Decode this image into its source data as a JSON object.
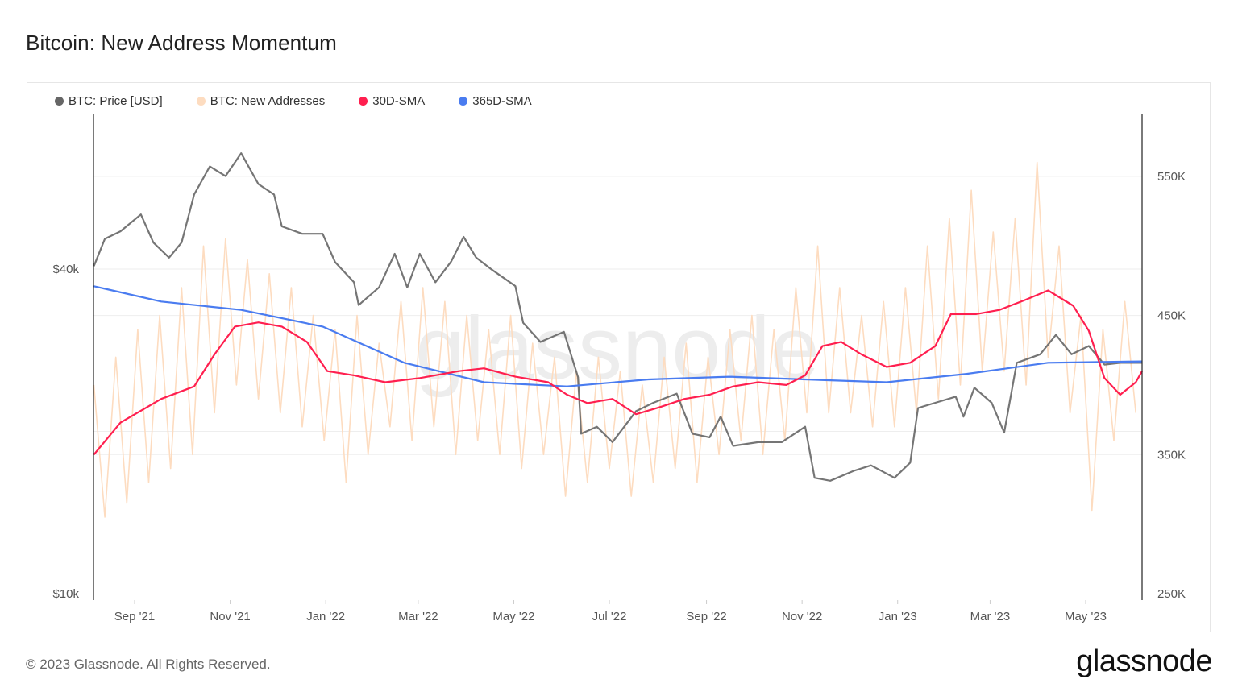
{
  "title": "Bitcoin: New Address Momentum",
  "footer": "© 2023 Glassnode. All Rights Reserved.",
  "logo": "glassnode",
  "watermark": "glassnode",
  "legend": [
    {
      "label": "BTC: Price [USD]",
      "color": "#666666"
    },
    {
      "label": "BTC: New Addresses",
      "color": "#fddcc0"
    },
    {
      "label": "30D-SMA",
      "color": "#ff1f4f"
    },
    {
      "label": "365D-SMA",
      "color": "#4a7cf0"
    }
  ],
  "chart_data": {
    "type": "line",
    "title": "Bitcoin: New Address Momentum",
    "x_range": [
      "2021-08-06",
      "2023-06-06"
    ],
    "grid": true,
    "legend_position": "top-left",
    "x_ticks": [
      {
        "label": "Sep '21",
        "date": "2021-09-01"
      },
      {
        "label": "Nov '21",
        "date": "2021-11-01"
      },
      {
        "label": "Jan '22",
        "date": "2022-01-01"
      },
      {
        "label": "Mar '22",
        "date": "2022-03-01"
      },
      {
        "label": "May '22",
        "date": "2022-05-01"
      },
      {
        "label": "Jul '22",
        "date": "2022-07-01"
      },
      {
        "label": "Sep '22",
        "date": "2022-09-01"
      },
      {
        "label": "Nov '22",
        "date": "2022-11-01"
      },
      {
        "label": "Jan '23",
        "date": "2023-01-01"
      },
      {
        "label": "Mar '23",
        "date": "2023-03-01"
      },
      {
        "label": "May '23",
        "date": "2023-05-01"
      }
    ],
    "y_left": {
      "scale": "log",
      "ticks": [
        {
          "label": "$40k",
          "value": 40000
        },
        {
          "label": "$10k",
          "value": 10000
        }
      ]
    },
    "y_right": {
      "scale": "linear",
      "range": [
        250000,
        560000
      ],
      "ticks": [
        {
          "label": "550K",
          "value": 550000
        },
        {
          "label": "450K",
          "value": 450000
        },
        {
          "label": "350K",
          "value": 350000
        },
        {
          "label": "250K",
          "value": 250000
        }
      ]
    },
    "series": [
      {
        "name": "BTC: Price [USD]",
        "axis": "left",
        "color": "#666666",
        "x": [
          "2021-08-06",
          "2021-08-13",
          "2021-08-23",
          "2021-09-05",
          "2021-09-13",
          "2021-09-23",
          "2021-10-01",
          "2021-10-09",
          "2021-10-19",
          "2021-10-29",
          "2021-11-08",
          "2021-11-19",
          "2021-11-29",
          "2021-12-04",
          "2021-12-17",
          "2021-12-30",
          "2022-01-07",
          "2022-01-19",
          "2022-01-22",
          "2022-02-04",
          "2022-02-14",
          "2022-02-22",
          "2022-03-02",
          "2022-03-12",
          "2022-03-22",
          "2022-03-30",
          "2022-04-07",
          "2022-04-17",
          "2022-05-02",
          "2022-05-07",
          "2022-05-18",
          "2022-06-02",
          "2022-06-11",
          "2022-06-13",
          "2022-06-23",
          "2022-07-03",
          "2022-07-18",
          "2022-07-29",
          "2022-08-13",
          "2022-08-23",
          "2022-09-03",
          "2022-09-10",
          "2022-09-18",
          "2022-10-04",
          "2022-10-19",
          "2022-11-03",
          "2022-11-09",
          "2022-11-19",
          "2022-12-04",
          "2022-12-15",
          "2022-12-30",
          "2023-01-09",
          "2023-01-14",
          "2023-01-25",
          "2023-02-07",
          "2023-02-12",
          "2023-02-19",
          "2023-03-02",
          "2023-03-10",
          "2023-03-18",
          "2023-04-02",
          "2023-04-12",
          "2023-04-22",
          "2023-05-03",
          "2023-05-13",
          "2023-05-23",
          "2023-06-06"
        ],
        "values": [
          40500,
          45500,
          47000,
          50500,
          44800,
          42000,
          44800,
          55000,
          62000,
          59500,
          65600,
          57500,
          55000,
          48000,
          46500,
          46500,
          41200,
          37800,
          34300,
          37000,
          42700,
          37000,
          42700,
          37800,
          41300,
          45900,
          42000,
          39900,
          37200,
          31800,
          29300,
          30600,
          25200,
          19800,
          20400,
          19100,
          21800,
          22600,
          23500,
          19800,
          19500,
          21300,
          18800,
          19100,
          19100,
          20400,
          16400,
          16200,
          16900,
          17300,
          16400,
          17500,
          22100,
          22600,
          23200,
          21300,
          24100,
          22600,
          19900,
          26800,
          27800,
          30200,
          27800,
          28800,
          26600,
          26800,
          26800
        ]
      },
      {
        "name": "BTC: New Addresses",
        "axis": "right",
        "color": "#fddcc0",
        "x": [
          "2021-08-06",
          "2021-08-13",
          "2021-08-20",
          "2021-08-27",
          "2021-09-03",
          "2021-09-10",
          "2021-09-17",
          "2021-09-24",
          "2021-10-01",
          "2021-10-08",
          "2021-10-15",
          "2021-10-22",
          "2021-10-29",
          "2021-11-05",
          "2021-11-12",
          "2021-11-19",
          "2021-11-26",
          "2021-12-03",
          "2021-12-10",
          "2021-12-17",
          "2021-12-24",
          "2021-12-31",
          "2022-01-07",
          "2022-01-14",
          "2022-01-21",
          "2022-01-28",
          "2022-02-04",
          "2022-02-11",
          "2022-02-18",
          "2022-02-25",
          "2022-03-04",
          "2022-03-11",
          "2022-03-18",
          "2022-03-25",
          "2022-04-01",
          "2022-04-08",
          "2022-04-15",
          "2022-04-22",
          "2022-04-29",
          "2022-05-06",
          "2022-05-13",
          "2022-05-20",
          "2022-05-27",
          "2022-06-03",
          "2022-06-10",
          "2022-06-17",
          "2022-06-24",
          "2022-07-01",
          "2022-07-08",
          "2022-07-15",
          "2022-07-22",
          "2022-07-29",
          "2022-08-05",
          "2022-08-12",
          "2022-08-19",
          "2022-08-26",
          "2022-09-02",
          "2022-09-09",
          "2022-09-16",
          "2022-09-23",
          "2022-09-30",
          "2022-10-07",
          "2022-10-14",
          "2022-10-21",
          "2022-10-28",
          "2022-11-04",
          "2022-11-11",
          "2022-11-18",
          "2022-11-25",
          "2022-12-02",
          "2022-12-09",
          "2022-12-16",
          "2022-12-23",
          "2022-12-30",
          "2023-01-06",
          "2023-01-13",
          "2023-01-20",
          "2023-01-27",
          "2023-02-03",
          "2023-02-10",
          "2023-02-17",
          "2023-02-24",
          "2023-03-03",
          "2023-03-10",
          "2023-03-17",
          "2023-03-24",
          "2023-03-31",
          "2023-04-07",
          "2023-04-14",
          "2023-04-21",
          "2023-04-28",
          "2023-05-05",
          "2023-05-12",
          "2023-05-19",
          "2023-05-26",
          "2023-06-02"
        ],
        "values": [
          400000,
          305000,
          420000,
          315000,
          440000,
          330000,
          450000,
          340000,
          470000,
          350000,
          500000,
          380000,
          505000,
          400000,
          490000,
          390000,
          480000,
          380000,
          470000,
          370000,
          450000,
          360000,
          440000,
          330000,
          450000,
          350000,
          430000,
          370000,
          460000,
          360000,
          470000,
          370000,
          460000,
          350000,
          450000,
          360000,
          440000,
          350000,
          450000,
          340000,
          430000,
          350000,
          420000,
          320000,
          410000,
          330000,
          420000,
          340000,
          410000,
          320000,
          400000,
          330000,
          420000,
          340000,
          430000,
          330000,
          420000,
          350000,
          440000,
          360000,
          450000,
          350000,
          440000,
          360000,
          470000,
          380000,
          500000,
          380000,
          470000,
          380000,
          450000,
          370000,
          460000,
          370000,
          470000,
          380000,
          500000,
          390000,
          520000,
          400000,
          540000,
          410000,
          510000,
          410000,
          520000,
          400000,
          560000,
          420000,
          500000,
          380000,
          450000,
          310000,
          440000,
          360000,
          460000,
          380000
        ]
      },
      {
        "name": "30D-SMA",
        "axis": "right",
        "color": "#ff1f4f",
        "x": [
          "2021-08-06",
          "2021-08-23",
          "2021-09-18",
          "2021-10-09",
          "2021-10-22",
          "2021-11-04",
          "2021-11-19",
          "2021-12-04",
          "2021-12-20",
          "2022-01-02",
          "2022-01-19",
          "2022-02-08",
          "2022-03-02",
          "2022-03-27",
          "2022-04-12",
          "2022-05-02",
          "2022-05-23",
          "2022-06-04",
          "2022-06-17",
          "2022-07-03",
          "2022-07-18",
          "2022-08-02",
          "2022-08-18",
          "2022-09-03",
          "2022-09-18",
          "2022-10-04",
          "2022-10-22",
          "2022-11-03",
          "2022-11-14",
          "2022-11-26",
          "2022-12-09",
          "2022-12-25",
          "2023-01-09",
          "2023-01-25",
          "2023-02-04",
          "2023-02-20",
          "2023-03-07",
          "2023-03-23",
          "2023-04-07",
          "2023-04-23",
          "2023-05-03",
          "2023-05-13",
          "2023-05-23",
          "2023-06-02",
          "2023-06-06"
        ],
        "values": [
          350000,
          373000,
          390000,
          399000,
          422000,
          442000,
          445000,
          442000,
          431000,
          410000,
          407000,
          402000,
          405000,
          410000,
          412000,
          406000,
          402000,
          393000,
          387000,
          390000,
          379000,
          384000,
          390000,
          393000,
          399000,
          402000,
          400000,
          407000,
          428000,
          431000,
          422000,
          413000,
          416000,
          428000,
          451000,
          451000,
          454000,
          461000,
          468000,
          457000,
          439000,
          405000,
          393000,
          402000,
          410000
        ]
      },
      {
        "name": "365D-SMA",
        "axis": "right",
        "color": "#4a7cf0",
        "x": [
          "2021-08-06",
          "2021-09-18",
          "2021-11-08",
          "2021-12-30",
          "2022-02-20",
          "2022-04-12",
          "2022-06-04",
          "2022-07-26",
          "2022-09-16",
          "2022-11-03",
          "2022-12-25",
          "2023-02-14",
          "2023-04-07",
          "2023-06-06"
        ],
        "values": [
          471000,
          460000,
          454000,
          442000,
          416000,
          402000,
          399000,
          404000,
          406000,
          404000,
          402000,
          408000,
          416000,
          417000
        ]
      }
    ]
  }
}
